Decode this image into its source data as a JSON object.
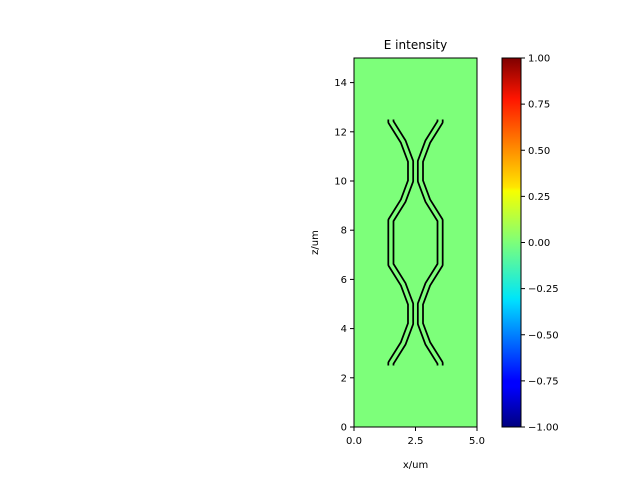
{
  "chart_data": {
    "type": "heatmap",
    "title": "E intensity",
    "xlabel": "x/um",
    "ylabel": "z/um",
    "xlim": [
      0,
      5
    ],
    "ylim": [
      0,
      15
    ],
    "x_ticks": [
      "0.0",
      "2.5",
      "5.0"
    ],
    "y_ticks": [
      "0",
      "2",
      "4",
      "6",
      "8",
      "10",
      "12",
      "14"
    ],
    "field_value": 0.0,
    "colormap": "jet",
    "colorbar": {
      "range": [
        -1,
        1
      ],
      "ticks": [
        "1.00",
        "0.75",
        "0.50",
        "0.25",
        "0.00",
        "−0.25",
        "−0.50",
        "−0.75",
        "−1.00"
      ],
      "tick_values": [
        1,
        0.75,
        0.5,
        0.25,
        0,
        -0.25,
        -0.5,
        -0.75,
        -1
      ]
    },
    "structure_outline": {
      "description_units": "um",
      "left_waveguide": [
        [
          1.5,
          2.5
        ],
        [
          1.5,
          2.6
        ],
        [
          2.0,
          3.4
        ],
        [
          2.3,
          4.2
        ],
        [
          2.3,
          5.0
        ],
        [
          2.0,
          5.8
        ],
        [
          1.5,
          6.6
        ],
        [
          1.5,
          8.4
        ],
        [
          2.0,
          9.2
        ],
        [
          2.3,
          10.0
        ],
        [
          2.3,
          10.8
        ],
        [
          2.0,
          11.6
        ],
        [
          1.5,
          12.4
        ],
        [
          1.5,
          12.5
        ]
      ],
      "right_waveguide": [
        [
          3.5,
          2.5
        ],
        [
          3.5,
          2.6
        ],
        [
          3.0,
          3.4
        ],
        [
          2.7,
          4.2
        ],
        [
          2.7,
          5.0
        ],
        [
          3.0,
          5.8
        ],
        [
          3.5,
          6.6
        ],
        [
          3.5,
          8.4
        ],
        [
          3.0,
          9.2
        ],
        [
          2.7,
          10.0
        ],
        [
          2.7,
          10.8
        ],
        [
          3.0,
          11.6
        ],
        [
          3.5,
          12.4
        ],
        [
          3.5,
          12.5
        ]
      ],
      "width": 0.2
    }
  }
}
